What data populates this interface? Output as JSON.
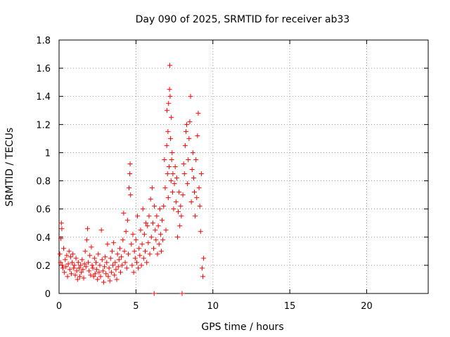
{
  "chart_data": {
    "type": "scatter",
    "title": "Day 090 of 2025, SRMTID for receiver ab33",
    "xlabel": "GPS time / hours",
    "ylabel": "SRMTID / TECUs",
    "xlim": [
      0,
      24
    ],
    "ylim": [
      0,
      1.8
    ],
    "xticks": [
      0,
      5,
      10,
      15,
      20
    ],
    "xtick_labels": [
      "0",
      "5",
      "10",
      "15",
      "20"
    ],
    "yticks": [
      0,
      0.2,
      0.4,
      0.6,
      0.8,
      1.0,
      1.2,
      1.4,
      1.6,
      1.8
    ],
    "ytick_labels": [
      "0",
      "0.2",
      "0.4",
      "0.6",
      "0.8",
      "1",
      "1.2",
      "1.4",
      "1.6",
      "1.8"
    ],
    "grid": true,
    "marker": "+",
    "color": "#ff0000",
    "series": [
      {
        "name": "SRMTID",
        "points": [
          [
            0.05,
            0.28
          ],
          [
            0.1,
            0.22
          ],
          [
            0.12,
            0.39
          ],
          [
            0.15,
            0.5
          ],
          [
            0.18,
            0.46
          ],
          [
            0.2,
            0.2
          ],
          [
            0.25,
            0.18
          ],
          [
            0.3,
            0.32
          ],
          [
            0.35,
            0.15
          ],
          [
            0.4,
            0.24
          ],
          [
            0.45,
            0.19
          ],
          [
            0.5,
            0.27
          ],
          [
            0.55,
            0.12
          ],
          [
            0.6,
            0.21
          ],
          [
            0.65,
            0.3
          ],
          [
            0.7,
            0.17
          ],
          [
            0.75,
            0.26
          ],
          [
            0.8,
            0.14
          ],
          [
            0.85,
            0.22
          ],
          [
            0.9,
            0.28
          ],
          [
            0.95,
            0.18
          ],
          [
            1.0,
            0.2
          ],
          [
            1.05,
            0.13
          ],
          [
            1.1,
            0.25
          ],
          [
            1.15,
            0.16
          ],
          [
            1.2,
            0.1
          ],
          [
            1.25,
            0.22
          ],
          [
            1.3,
            0.18
          ],
          [
            1.35,
            0.12
          ],
          [
            1.4,
            0.2
          ],
          [
            1.45,
            0.15
          ],
          [
            1.5,
            0.24
          ],
          [
            1.55,
            0.17
          ],
          [
            1.6,
            0.11
          ],
          [
            1.65,
            0.21
          ],
          [
            1.7,
            0.3
          ],
          [
            1.75,
            0.19
          ],
          [
            1.8,
            0.38
          ],
          [
            1.85,
            0.46
          ],
          [
            1.9,
            0.22
          ],
          [
            1.95,
            0.16
          ],
          [
            2.0,
            0.27
          ],
          [
            2.05,
            0.13
          ],
          [
            2.1,
            0.33
          ],
          [
            2.15,
            0.2
          ],
          [
            2.2,
            0.18
          ],
          [
            2.25,
            0.12
          ],
          [
            2.3,
            0.25
          ],
          [
            2.35,
            0.14
          ],
          [
            2.4,
            0.22
          ],
          [
            2.45,
            0.17
          ],
          [
            2.5,
            0.1
          ],
          [
            2.55,
            0.28
          ],
          [
            2.6,
            0.15
          ],
          [
            2.65,
            0.2
          ],
          [
            2.7,
            0.12
          ],
          [
            2.75,
            0.45
          ],
          [
            2.8,
            0.24
          ],
          [
            2.85,
            0.16
          ],
          [
            2.9,
            0.08
          ],
          [
            2.95,
            0.19
          ],
          [
            3.0,
            0.26
          ],
          [
            3.05,
            0.14
          ],
          [
            3.1,
            0.22
          ],
          [
            3.15,
            0.35
          ],
          [
            3.2,
            0.12
          ],
          [
            3.25,
            0.18
          ],
          [
            3.3,
            0.09
          ],
          [
            3.35,
            0.25
          ],
          [
            3.4,
            0.15
          ],
          [
            3.45,
            0.3
          ],
          [
            3.5,
            0.2
          ],
          [
            3.55,
            0.36
          ],
          [
            3.6,
            0.13
          ],
          [
            3.65,
            0.22
          ],
          [
            3.7,
            0.17
          ],
          [
            3.75,
            0.1
          ],
          [
            3.8,
            0.28
          ],
          [
            3.85,
            0.19
          ],
          [
            3.9,
            0.24
          ],
          [
            3.95,
            0.32
          ],
          [
            4.0,
            0.15
          ],
          [
            4.05,
            0.26
          ],
          [
            4.1,
            0.2
          ],
          [
            4.15,
            0.38
          ],
          [
            4.2,
            0.57
          ],
          [
            4.25,
            0.3
          ],
          [
            4.3,
            0.22
          ],
          [
            4.35,
            0.44
          ],
          [
            4.4,
            0.18
          ],
          [
            4.45,
            0.52
          ],
          [
            4.5,
            0.28
          ],
          [
            4.55,
            0.75
          ],
          [
            4.6,
            0.85
          ],
          [
            4.62,
            0.92
          ],
          [
            4.65,
            0.7
          ],
          [
            4.7,
            0.35
          ],
          [
            4.75,
            0.2
          ],
          [
            4.8,
            0.42
          ],
          [
            4.85,
            0.15
          ],
          [
            4.9,
            0.3
          ],
          [
            4.95,
            0.25
          ],
          [
            5.0,
            0.38
          ],
          [
            5.05,
            0.22
          ],
          [
            5.1,
            0.55
          ],
          [
            5.15,
            0.18
          ],
          [
            5.2,
            0.32
          ],
          [
            5.25,
            0.27
          ],
          [
            5.3,
            0.45
          ],
          [
            5.35,
            0.2
          ],
          [
            5.4,
            0.35
          ],
          [
            5.45,
            0.6
          ],
          [
            5.5,
            0.25
          ],
          [
            5.55,
            0.42
          ],
          [
            5.6,
            0.3
          ],
          [
            5.65,
            0.5
          ],
          [
            5.7,
            0.22
          ],
          [
            5.75,
            0.48
          ],
          [
            5.8,
            0.36
          ],
          [
            5.85,
            0.55
          ],
          [
            5.9,
            0.28
          ],
          [
            5.95,
            0.67
          ],
          [
            6.0,
            0.4
          ],
          [
            6.05,
            0.75
          ],
          [
            6.1,
            0.5
          ],
          [
            6.15,
            0.32
          ],
          [
            6.18,
            0.0
          ],
          [
            6.2,
            0.62
          ],
          [
            6.25,
            0.45
          ],
          [
            6.3,
            0.38
          ],
          [
            6.35,
            0.55
          ],
          [
            6.4,
            0.28
          ],
          [
            6.45,
            0.48
          ],
          [
            6.5,
            0.35
          ],
          [
            6.55,
            0.6
          ],
          [
            6.6,
            0.42
          ],
          [
            6.65,
            0.3
          ],
          [
            6.7,
            0.52
          ],
          [
            6.75,
            0.38
          ],
          [
            6.8,
            0.62
          ],
          [
            6.85,
            0.95
          ],
          [
            6.9,
            0.75
          ],
          [
            6.95,
            0.45
          ],
          [
            7.0,
            1.05
          ],
          [
            7.02,
            1.3
          ],
          [
            7.05,
            0.85
          ],
          [
            7.08,
            1.15
          ],
          [
            7.1,
            0.68
          ],
          [
            7.12,
            1.35
          ],
          [
            7.15,
            0.9
          ],
          [
            7.18,
            1.45
          ],
          [
            7.2,
            1.62
          ],
          [
            7.22,
            1.4
          ],
          [
            7.25,
            1.1
          ],
          [
            7.28,
            0.8
          ],
          [
            7.3,
            1.25
          ],
          [
            7.32,
            0.95
          ],
          [
            7.35,
            1.0
          ],
          [
            7.38,
            0.72
          ],
          [
            7.4,
            0.85
          ],
          [
            7.45,
            0.6
          ],
          [
            7.5,
            0.78
          ],
          [
            7.55,
            0.9
          ],
          [
            7.6,
            0.65
          ],
          [
            7.65,
            0.82
          ],
          [
            7.7,
            0.4
          ],
          [
            7.75,
            0.58
          ],
          [
            7.8,
            0.72
          ],
          [
            7.85,
            0.48
          ],
          [
            7.9,
            0.62
          ],
          [
            7.95,
            0.55
          ],
          [
            8.0,
            0.0
          ],
          [
            8.05,
            0.7
          ],
          [
            8.1,
            0.92
          ],
          [
            8.15,
            0.85
          ],
          [
            8.2,
            1.05
          ],
          [
            8.25,
            1.15
          ],
          [
            8.3,
            1.2
          ],
          [
            8.35,
            0.78
          ],
          [
            8.4,
            0.95
          ],
          [
            8.45,
            1.1
          ],
          [
            8.5,
            1.22
          ],
          [
            8.55,
            1.4
          ],
          [
            8.6,
            0.65
          ],
          [
            8.65,
            0.88
          ],
          [
            8.7,
            1.0
          ],
          [
            8.75,
            0.82
          ],
          [
            8.8,
            0.72
          ],
          [
            8.85,
            0.55
          ],
          [
            8.9,
            0.95
          ],
          [
            8.95,
            0.68
          ],
          [
            9.0,
            1.12
          ],
          [
            9.05,
            1.28
          ],
          [
            9.1,
            0.75
          ],
          [
            9.15,
            0.62
          ],
          [
            9.2,
            0.44
          ],
          [
            9.25,
            0.85
          ],
          [
            9.3,
            0.18
          ],
          [
            9.35,
            0.12
          ],
          [
            9.4,
            0.25
          ]
        ]
      }
    ]
  }
}
